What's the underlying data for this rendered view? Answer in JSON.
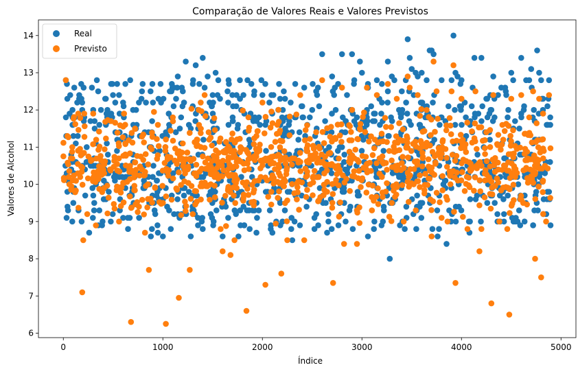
{
  "chart_data": {
    "type": "scatter",
    "title": "Comparação de Valores Reais e Valores Previstos",
    "xlabel": "Índice",
    "ylabel": "Valores de Alcohol",
    "xlim": [
      -250,
      5150
    ],
    "ylim": [
      5.88,
      14.42
    ],
    "xticks": [
      0,
      1000,
      2000,
      3000,
      4000,
      5000
    ],
    "yticks": [
      6,
      7,
      8,
      9,
      10,
      11,
      12,
      13,
      14
    ],
    "grid": false,
    "legend_position": "top-left",
    "n_points": 980,
    "series": [
      {
        "name": "Real",
        "color": "#1f77b4",
        "outliers": [
          [
            25,
            12.8
          ],
          [
            40,
            12.3
          ],
          [
            80,
            10.8
          ],
          [
            90,
            9.0
          ],
          [
            100,
            9.5
          ],
          [
            110,
            12.6
          ],
          [
            140,
            12.2
          ],
          [
            160,
            12.4
          ],
          [
            180,
            12.7
          ],
          [
            190,
            12.0
          ],
          [
            220,
            9.7
          ],
          [
            260,
            8.7
          ],
          [
            300,
            12.0
          ],
          [
            350,
            12.5
          ],
          [
            420,
            12.3
          ],
          [
            480,
            12.7
          ],
          [
            540,
            12.7
          ],
          [
            600,
            12.2
          ],
          [
            650,
            8.8
          ],
          [
            700,
            12.0
          ],
          [
            760,
            12.2
          ],
          [
            830,
            12.2
          ],
          [
            880,
            8.6
          ],
          [
            900,
            12.2
          ],
          [
            950,
            8.7
          ],
          [
            1000,
            8.6
          ],
          [
            1070,
            12.5
          ],
          [
            1090,
            12.7
          ],
          [
            1110,
            12.6
          ],
          [
            1150,
            12.9
          ],
          [
            1200,
            12.5
          ],
          [
            1230,
            13.3
          ],
          [
            1280,
            8.6
          ],
          [
            1330,
            13.2
          ],
          [
            1400,
            13.4
          ],
          [
            1420,
            12.6
          ],
          [
            1450,
            12.9
          ],
          [
            1470,
            12.2
          ],
          [
            1500,
            12.4
          ],
          [
            1510,
            11.5
          ],
          [
            1530,
            13.0
          ],
          [
            1600,
            8.6
          ],
          [
            1650,
            12.5
          ],
          [
            1660,
            12.8
          ],
          [
            1700,
            11.1
          ],
          [
            1760,
            8.6
          ],
          [
            1850,
            12.8
          ],
          [
            1940,
            8.7
          ],
          [
            2000,
            12.4
          ],
          [
            2030,
            11.6
          ],
          [
            2070,
            12.2
          ],
          [
            2100,
            8.7
          ],
          [
            2180,
            11.6
          ],
          [
            2210,
            11.3
          ],
          [
            2300,
            8.5
          ],
          [
            2330,
            12.7
          ],
          [
            2400,
            12.1
          ],
          [
            2500,
            12.0
          ],
          [
            2600,
            13.5
          ],
          [
            2650,
            8.7
          ],
          [
            2700,
            12.9
          ],
          [
            2720,
            12.4
          ],
          [
            2760,
            12.7
          ],
          [
            2800,
            13.5
          ],
          [
            2850,
            12.4
          ],
          [
            2900,
            13.5
          ],
          [
            2920,
            12.7
          ],
          [
            2980,
            13.3
          ],
          [
            3000,
            13.0
          ],
          [
            3050,
            12.0
          ],
          [
            3060,
            8.6
          ],
          [
            3120,
            8.8
          ],
          [
            3150,
            12.8
          ],
          [
            3200,
            12.7
          ],
          [
            3260,
            13.3
          ],
          [
            3280,
            8.0
          ],
          [
            3300,
            12.9
          ],
          [
            3400,
            12.5
          ],
          [
            3430,
            8.8
          ],
          [
            3460,
            13.9
          ],
          [
            3480,
            13.4
          ],
          [
            3500,
            13.1
          ],
          [
            3540,
            13.0
          ],
          [
            3560,
            12.9
          ],
          [
            3600,
            13.0
          ],
          [
            3650,
            12.8
          ],
          [
            3680,
            13.6
          ],
          [
            3700,
            13.6
          ],
          [
            3720,
            13.5
          ],
          [
            3760,
            8.6
          ],
          [
            3800,
            12.8
          ],
          [
            3850,
            8.4
          ],
          [
            3900,
            12.8
          ],
          [
            3920,
            14.0
          ],
          [
            3940,
            13.0
          ],
          [
            3960,
            12.9
          ],
          [
            4000,
            12.8
          ],
          [
            4080,
            8.7
          ],
          [
            4130,
            13.4
          ],
          [
            4200,
            13.4
          ],
          [
            4250,
            12.3
          ],
          [
            4300,
            12.0
          ],
          [
            4320,
            12.9
          ],
          [
            4400,
            12.6
          ],
          [
            4450,
            12.4
          ],
          [
            4500,
            13.0
          ],
          [
            4520,
            12.8
          ],
          [
            4540,
            9.0
          ],
          [
            4600,
            13.4
          ],
          [
            4650,
            12.8
          ],
          [
            4680,
            12.8
          ],
          [
            4700,
            13.1
          ],
          [
            4720,
            8.9
          ],
          [
            4760,
            13.6
          ],
          [
            4780,
            13.0
          ],
          [
            4800,
            12.8
          ],
          [
            4820,
            12.3
          ],
          [
            4860,
            9.6
          ],
          [
            4880,
            12.8
          ],
          [
            4890,
            10.6
          ]
        ]
      },
      {
        "name": "Previsto",
        "color": "#ff7f0e",
        "outliers": [
          [
            25,
            12.8
          ],
          [
            40,
            11.3
          ],
          [
            60,
            10.0
          ],
          [
            90,
            11.0
          ],
          [
            150,
            11.9
          ],
          [
            190,
            7.1
          ],
          [
            200,
            8.5
          ],
          [
            210,
            11.9
          ],
          [
            240,
            9.2
          ],
          [
            300,
            11.9
          ],
          [
            330,
            11.2
          ],
          [
            400,
            10.6
          ],
          [
            480,
            11.7
          ],
          [
            560,
            9.0
          ],
          [
            610,
            11.9
          ],
          [
            680,
            6.3
          ],
          [
            720,
            11.5
          ],
          [
            760,
            9.4
          ],
          [
            820,
            8.7
          ],
          [
            850,
            10.0
          ],
          [
            860,
            7.7
          ],
          [
            950,
            11.6
          ],
          [
            1000,
            9.5
          ],
          [
            1030,
            6.25
          ],
          [
            1100,
            11.8
          ],
          [
            1160,
            6.95
          ],
          [
            1200,
            11.1
          ],
          [
            1270,
            7.7
          ],
          [
            1300,
            9.2
          ],
          [
            1360,
            12.0
          ],
          [
            1380,
            12.2
          ],
          [
            1420,
            12.4
          ],
          [
            1460,
            11.4
          ],
          [
            1520,
            10.3
          ],
          [
            1580,
            8.8
          ],
          [
            1600,
            8.2
          ],
          [
            1680,
            8.1
          ],
          [
            1720,
            8.5
          ],
          [
            1780,
            11.0
          ],
          [
            1840,
            6.6
          ],
          [
            1860,
            11.8
          ],
          [
            1900,
            9.5
          ],
          [
            1940,
            11.3
          ],
          [
            2000,
            12.2
          ],
          [
            2030,
            7.3
          ],
          [
            2090,
            9.8
          ],
          [
            2150,
            11.6
          ],
          [
            2190,
            7.6
          ],
          [
            2250,
            8.5
          ],
          [
            2300,
            10.7
          ],
          [
            2380,
            12.4
          ],
          [
            2420,
            8.5
          ],
          [
            2480,
            10.0
          ],
          [
            2540,
            11.4
          ],
          [
            2600,
            12.8
          ],
          [
            2650,
            9.8
          ],
          [
            2710,
            7.35
          ],
          [
            2760,
            10.5
          ],
          [
            2800,
            12.6
          ],
          [
            2820,
            8.4
          ],
          [
            2900,
            12.0
          ],
          [
            2950,
            8.4
          ],
          [
            2980,
            11.5
          ],
          [
            3050,
            12.6
          ],
          [
            3100,
            9.3
          ],
          [
            3150,
            12.4
          ],
          [
            3200,
            10.2
          ],
          [
            3260,
            12.7
          ],
          [
            3300,
            9.5
          ],
          [
            3350,
            12.3
          ],
          [
            3420,
            9.0
          ],
          [
            3460,
            12.9
          ],
          [
            3480,
            12.6
          ],
          [
            3520,
            10.0
          ],
          [
            3560,
            12.4
          ],
          [
            3600,
            11.1
          ],
          [
            3650,
            12.0
          ],
          [
            3700,
            8.6
          ],
          [
            3720,
            13.3
          ],
          [
            3750,
            12.5
          ],
          [
            3800,
            9.1
          ],
          [
            3860,
            9.0
          ],
          [
            3900,
            12.5
          ],
          [
            3920,
            13.2
          ],
          [
            3940,
            7.35
          ],
          [
            4000,
            12.3
          ],
          [
            4060,
            8.8
          ],
          [
            4100,
            10.4
          ],
          [
            4140,
            12.5
          ],
          [
            4180,
            8.2
          ],
          [
            4200,
            8.8
          ],
          [
            4250,
            11.4
          ],
          [
            4300,
            6.8
          ],
          [
            4320,
            12.4
          ],
          [
            4380,
            9.0
          ],
          [
            4420,
            11.2
          ],
          [
            4460,
            8.8
          ],
          [
            4480,
            6.5
          ],
          [
            4500,
            12.3
          ],
          [
            4540,
            10.2
          ],
          [
            4600,
            12.4
          ],
          [
            4620,
            9.5
          ],
          [
            4680,
            11.8
          ],
          [
            4720,
            12.5
          ],
          [
            4740,
            8.0
          ],
          [
            4780,
            12.3
          ],
          [
            4800,
            7.5
          ],
          [
            4820,
            11.9
          ],
          [
            4850,
            9.0
          ],
          [
            4880,
            12.4
          ]
        ]
      }
    ]
  }
}
